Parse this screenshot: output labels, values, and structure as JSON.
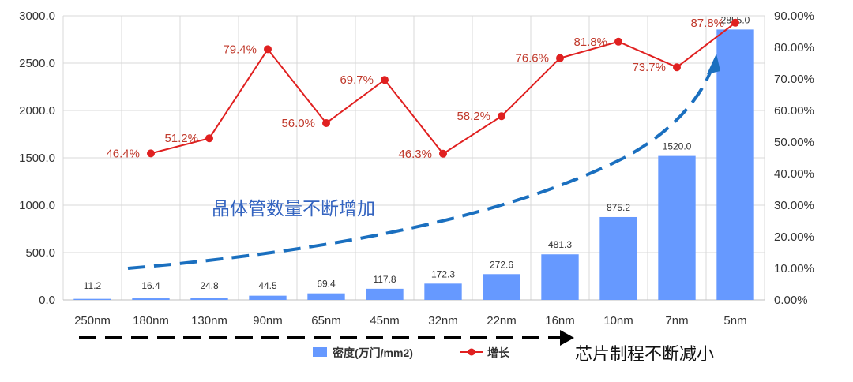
{
  "chart_data": {
    "type": "bar",
    "categories": [
      "250nm",
      "180nm",
      "130nm",
      "90nm",
      "65nm",
      "45nm",
      "32nm",
      "22nm",
      "16nm",
      "10nm",
      "7nm",
      "5nm"
    ],
    "series": [
      {
        "name": "密度(万门/mm2)",
        "type": "bar",
        "axis": "left",
        "values": [
          11.2,
          16.4,
          24.8,
          44.5,
          69.4,
          117.8,
          172.3,
          272.6,
          481.3,
          875.2,
          1520.0,
          2855.0
        ],
        "labels": [
          "11.2",
          "16.4",
          "24.8",
          "44.5",
          "69.4",
          "117.8",
          "172.3",
          "272.6",
          "481.3",
          "875.2",
          "1520.0",
          "2855.0"
        ],
        "color": "#6699ff"
      },
      {
        "name": "增长",
        "type": "line",
        "axis": "right",
        "values": [
          null,
          46.4,
          51.2,
          79.4,
          56.0,
          69.7,
          46.3,
          58.2,
          76.6,
          81.8,
          73.7,
          87.8
        ],
        "labels": [
          "",
          "46.4%",
          "51.2%",
          "79.4%",
          "56.0%",
          "69.7%",
          "46.3%",
          "58.2%",
          "76.6%",
          "81.8%",
          "73.7%",
          "87.8%"
        ],
        "color": "#e02020"
      }
    ],
    "ylim_left": [
      0,
      3000
    ],
    "ylim_right": [
      0,
      90
    ],
    "yticks_left": [
      "0.0",
      "500.0",
      "1000.0",
      "1500.0",
      "2000.0",
      "2500.0",
      "3000.0"
    ],
    "yticks_right": [
      "0.00%",
      "10.00%",
      "20.00%",
      "30.00%",
      "40.00%",
      "50.00%",
      "60.00%",
      "70.00%",
      "80.00%",
      "90.00%"
    ],
    "grid": true,
    "legend_position": "bottom",
    "annotations": {
      "trend_text": "晶体管数量不断增加",
      "process_text": "芯片制程不断减小"
    },
    "colors": {
      "trend_arrow": "#1a6fbf",
      "process_arrow": "#000000",
      "trend_text": "#3464c0",
      "growth_labels": "#c0392b"
    }
  }
}
